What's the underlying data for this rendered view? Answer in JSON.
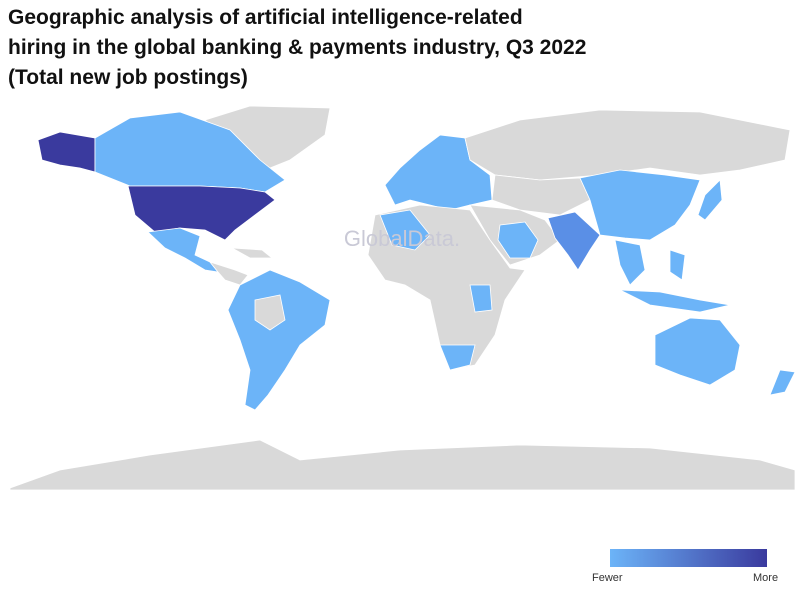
{
  "title": [
    "Geographic analysis of artificial intelligence-related",
    "hiring in the global banking & payments industry, Q3 2022",
    "(Total new job postings)"
  ],
  "watermark": "GlobalData.",
  "legend": {
    "min_label": "Fewer",
    "max_label": "More",
    "min_color": "#6cb4f8",
    "max_color": "#3a3a9e"
  }
}
